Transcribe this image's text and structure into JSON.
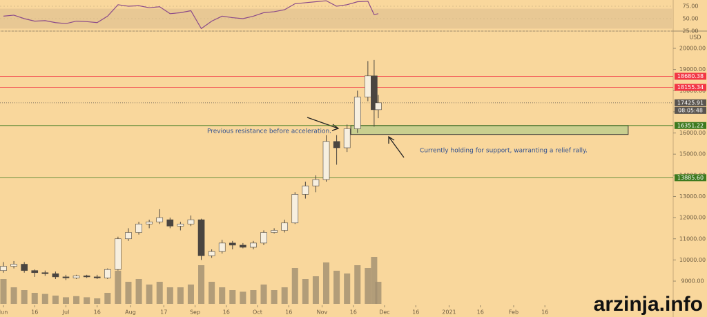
{
  "chart_data": {
    "type": "candlestick",
    "currency": "USD",
    "countdown": "08:05:48",
    "watermark": "arzinja.info",
    "up_color": "#f7efdf",
    "down_color": "#4a4540",
    "volume_color": "#a08e70",
    "x": [
      0,
      5,
      10,
      15,
      20,
      25,
      30,
      35,
      40,
      45,
      50,
      55,
      60,
      65,
      70,
      75,
      80,
      85,
      90,
      95,
      100,
      105,
      110,
      115,
      120,
      125,
      130,
      135,
      140,
      145,
      150,
      155,
      160,
      165,
      170,
      175,
      178,
      180
    ],
    "open": [
      9500,
      9700,
      9800,
      9500,
      9400,
      9350,
      9200,
      9150,
      9250,
      9200,
      9150,
      9550,
      11000,
      11300,
      11700,
      11800,
      11900,
      11600,
      11700,
      11900,
      10200,
      10400,
      10800,
      10700,
      10600,
      10800,
      11300,
      11400,
      11750,
      13100,
      13500,
      13800,
      15600,
      15300,
      16200,
      17700,
      18700,
      17100
    ],
    "high": [
      9900,
      9950,
      9900,
      9550,
      9500,
      9450,
      9300,
      9300,
      9300,
      9300,
      9600,
      11100,
      11500,
      11800,
      11900,
      12400,
      12000,
      11800,
      12100,
      11950,
      10500,
      10950,
      10900,
      10800,
      10900,
      11400,
      11500,
      11900,
      13200,
      13700,
      14000,
      15900,
      15900,
      16400,
      18000,
      19400,
      19450,
      17800
    ],
    "low": [
      9400,
      9600,
      9400,
      9200,
      9250,
      9100,
      9050,
      9100,
      9150,
      9100,
      9100,
      9500,
      10900,
      11200,
      11500,
      11700,
      11500,
      11400,
      11600,
      10000,
      10100,
      10300,
      10500,
      10550,
      10500,
      10700,
      11250,
      11300,
      11700,
      12900,
      13200,
      13700,
      14500,
      15100,
      16000,
      17500,
      16300,
      16700
    ],
    "close": [
      9700,
      9800,
      9500,
      9400,
      9350,
      9200,
      9150,
      9250,
      9200,
      9150,
      9550,
      11000,
      11300,
      11700,
      11800,
      12000,
      11600,
      11700,
      11900,
      10200,
      10400,
      10800,
      10700,
      10600,
      10800,
      11300,
      11400,
      11750,
      13100,
      13500,
      13800,
      15600,
      15300,
      16200,
      17700,
      18700,
      17100,
      17426
    ],
    "volume": [
      45,
      30,
      25,
      20,
      18,
      15,
      12,
      14,
      12,
      10,
      20,
      60,
      40,
      45,
      35,
      40,
      30,
      30,
      35,
      70,
      40,
      30,
      25,
      22,
      25,
      35,
      25,
      30,
      65,
      45,
      50,
      75,
      60,
      55,
      70,
      65,
      85,
      40
    ],
    "volume_max": 100,
    "xlim": [
      -1.66,
      321.6
    ],
    "ylim": [
      7924,
      20718
    ],
    "xticks": [
      {
        "value": 0,
        "label": "Jun"
      },
      {
        "value": 15,
        "label": "16"
      },
      {
        "value": 30,
        "label": "Jul"
      },
      {
        "value": 45,
        "label": "16"
      },
      {
        "value": 61,
        "label": "Aug"
      },
      {
        "value": 77,
        "label": "17"
      },
      {
        "value": 92,
        "label": "Sep"
      },
      {
        "value": 107,
        "label": "16"
      },
      {
        "value": 122,
        "label": "Oct"
      },
      {
        "value": 137,
        "label": "16"
      },
      {
        "value": 153,
        "label": "Nov"
      },
      {
        "value": 168,
        "label": "16"
      },
      {
        "value": 183,
        "label": "Dec"
      },
      {
        "value": 198,
        "label": "16"
      },
      {
        "value": 214,
        "label": "2021"
      },
      {
        "value": 229,
        "label": "16"
      },
      {
        "value": 245,
        "label": "Feb"
      },
      {
        "value": 260,
        "label": "16"
      }
    ],
    "yticks": [
      {
        "value": 20000,
        "label": "20000.00"
      },
      {
        "value": 19000,
        "label": "19000.00"
      },
      {
        "value": 18000,
        "label": "18000.00"
      },
      {
        "value": 17000,
        "label": "17000.00"
      },
      {
        "value": 16000,
        "label": "16000.00"
      },
      {
        "value": 15000,
        "label": "15000.00"
      },
      {
        "value": 14000,
        "label": "14000.00"
      },
      {
        "value": 13000,
        "label": "13000.00"
      },
      {
        "value": 12000,
        "label": "12000.00"
      },
      {
        "value": 11000,
        "label": "11000.00"
      },
      {
        "value": 10000,
        "label": "10000.00"
      },
      {
        "value": 9000,
        "label": "9000.00"
      }
    ],
    "levels": [
      {
        "value": 18680.38,
        "label": "18680.38",
        "color": "#f23645",
        "style": "solid"
      },
      {
        "value": 18155.34,
        "label": "18155.34",
        "color": "#f23645",
        "style": "solid"
      },
      {
        "value": 17425.91,
        "label": "17425.91",
        "color": "#5a5550",
        "style": "dotted"
      },
      {
        "value": 16351.22,
        "label": "16351.22",
        "color": "#3d7a1f",
        "style": "solid"
      },
      {
        "value": 13885.6,
        "label": "13885.60",
        "color": "#3d7a1f",
        "style": "solid"
      }
    ],
    "zone": {
      "top": 16351.22,
      "bottom": 15930,
      "x_start": 166.8,
      "x_end": 300,
      "color": "#c9cf8f"
    },
    "annotations": [
      {
        "text": "Previous resistance before acceleration."
      },
      {
        "text": "Currently holding for support, warranting a relief rally."
      }
    ],
    "rsi": {
      "values": [
        55,
        57,
        50,
        45,
        46,
        42,
        40,
        45,
        44,
        42,
        55,
        78,
        75,
        76,
        72,
        74,
        60,
        62,
        66,
        30,
        45,
        55,
        52,
        50,
        55,
        62,
        64,
        68,
        80,
        82,
        84,
        86,
        75,
        78,
        84,
        85,
        58,
        60
      ],
      "ylim": [
        25,
        87.5
      ],
      "band": [
        30,
        70
      ],
      "yticks": [
        {
          "value": 75,
          "label": "75.00"
        },
        {
          "value": 50,
          "label": "50.00"
        },
        {
          "value": 25,
          "label": "25.00"
        }
      ],
      "color": "#8a4a8a"
    }
  }
}
